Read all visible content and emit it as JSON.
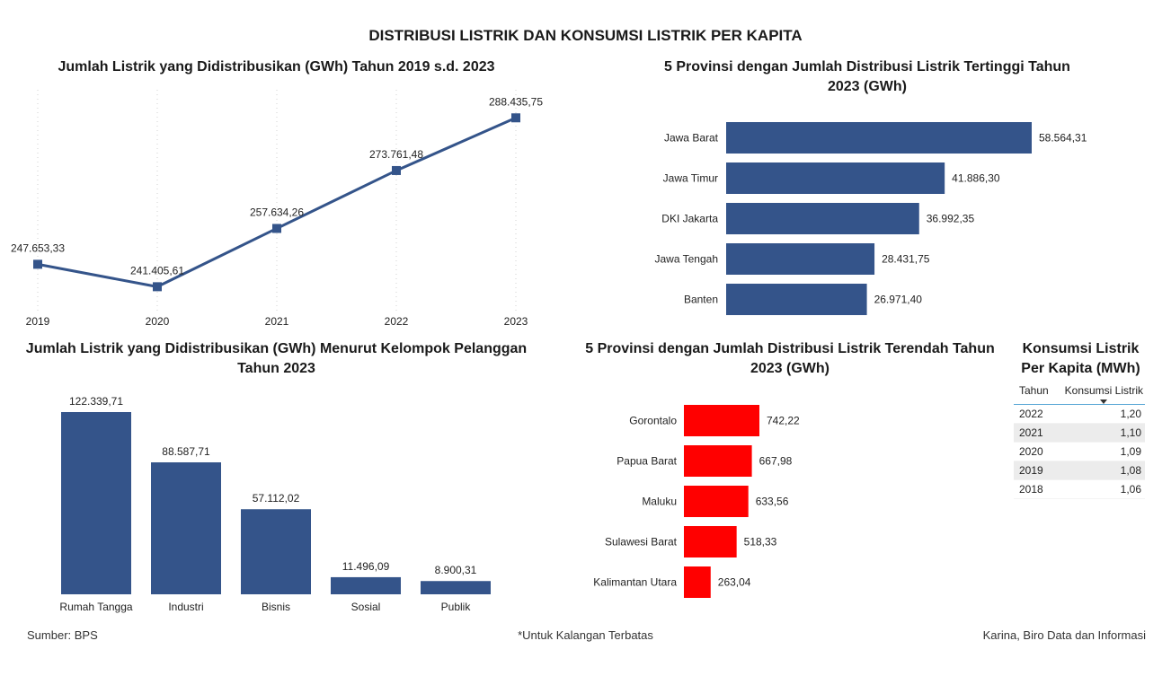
{
  "page": {
    "title": "DISTRIBUSI LISTRIK DAN KONSUMSI LISTRIK PER KAPITA",
    "footer_left": "Sumber: BPS",
    "footer_center": "*Untuk Kalangan Terbatas",
    "footer_right": "Karina, Biro Data dan Informasi"
  },
  "colors": {
    "primary": "#34548a",
    "low": "#ff0000"
  },
  "chart_data": [
    {
      "id": "trend",
      "type": "line",
      "title": "Jumlah Listrik yang Didistribusikan (GWh) Tahun 2019 s.d. 2023",
      "categories": [
        "2019",
        "2020",
        "2021",
        "2022",
        "2023"
      ],
      "values": [
        247653.33,
        241405.61,
        257634.26,
        273761.48,
        288435.75
      ],
      "labels": [
        "247.653,33",
        "241.405,61",
        "257.634,26",
        "273.761,48",
        "288.435,75"
      ],
      "xlabel": "",
      "ylabel": "",
      "grid": "vertical-dotted"
    },
    {
      "id": "top5",
      "type": "bar",
      "orientation": "horizontal",
      "title": "5 Provinsi dengan Jumlah Distribusi Listrik Tertinggi Tahun 2023 (GWh)",
      "categories": [
        "Jawa Barat",
        "Jawa Timur",
        "DKI Jakarta",
        "Jawa Tengah",
        "Banten"
      ],
      "values": [
        58564.31,
        41886.3,
        36992.35,
        28431.75,
        26971.4
      ],
      "labels": [
        "58.564,31",
        "41.886,30",
        "36.992,35",
        "28.431,75",
        "26.971,40"
      ]
    },
    {
      "id": "segment",
      "type": "bar",
      "orientation": "vertical",
      "title": "Jumlah Listrik yang Didistribusikan (GWh) Menurut Kelompok Pelanggan Tahun 2023",
      "categories": [
        "Rumah Tangga",
        "Industri",
        "Bisnis",
        "Sosial",
        "Publik"
      ],
      "values": [
        122339.71,
        88587.71,
        57112.02,
        11496.09,
        8900.31
      ],
      "labels": [
        "122.339,71",
        "88.587,71",
        "57.112,02",
        "11.496,09",
        "8.900,31"
      ]
    },
    {
      "id": "bottom5",
      "type": "bar",
      "orientation": "horizontal",
      "title": "5 Provinsi dengan Jumlah Distribusi Listrik Terendah Tahun 2023 (GWh)",
      "categories": [
        "Gorontalo",
        "Papua Barat",
        "Maluku",
        "Sulawesi Barat",
        "Kalimantan Utara"
      ],
      "values": [
        742.22,
        667.98,
        633.56,
        518.33,
        263.04
      ],
      "labels": [
        "742,22",
        "667,98",
        "633,56",
        "518,33",
        "263,04"
      ]
    },
    {
      "id": "percapita",
      "type": "table",
      "title": "Konsumsi Listrik Per Kapita (MWh)",
      "columns": [
        "Tahun",
        "Konsumsi Listrik"
      ],
      "sort": "descending-by-Konsumsi Listrik",
      "rows": [
        [
          "2022",
          "1,20"
        ],
        [
          "2021",
          "1,10"
        ],
        [
          "2020",
          "1,09"
        ],
        [
          "2019",
          "1,08"
        ],
        [
          "2018",
          "1,06"
        ]
      ]
    }
  ]
}
